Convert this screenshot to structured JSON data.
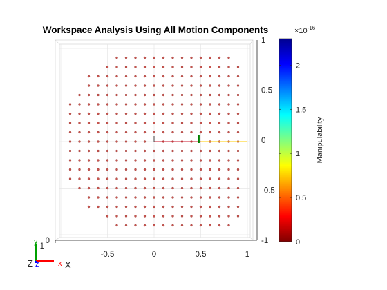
{
  "chart_data": {
    "type": "scatter",
    "title": "Workspace Analysis Using All Motion Components",
    "xlabel": "X",
    "ylabel": "",
    "xlim": [
      -1,
      1
    ],
    "ylim": [
      -1,
      1
    ],
    "xticks": [
      -0.5,
      0,
      0.5,
      1
    ],
    "xtick_labels": [
      "-0.5",
      "0",
      "0.5",
      "1"
    ],
    "yticks": [
      -1,
      -0.5,
      0,
      0.5,
      1
    ],
    "ytick_labels": [
      "-1",
      "-0.5",
      "0",
      "0.5",
      "1"
    ],
    "ztick_labels": [
      "1",
      "0"
    ],
    "grid": true,
    "point_color": "#c8554f",
    "points_description_values": {
      "grid_step": 0.1,
      "rows": [
        {
          "y": 0.9,
          "x": [
            -0.4,
            -0.3,
            -0.2,
            -0.1,
            0.0,
            0.1,
            0.2,
            0.3,
            0.4,
            0.5,
            0.6,
            0.7,
            0.8
          ]
        },
        {
          "y": 0.8,
          "x": [
            -0.5,
            -0.4,
            -0.3,
            -0.2,
            -0.1,
            0.0,
            0.1,
            0.2,
            0.3,
            0.4,
            0.5,
            0.6,
            0.7,
            0.8,
            0.9
          ]
        },
        {
          "y": 0.7,
          "x": [
            -0.7,
            -0.6,
            -0.5,
            -0.4,
            -0.3,
            -0.2,
            -0.1,
            0.0,
            0.1,
            0.2,
            0.3,
            0.4,
            0.5,
            0.6,
            0.7,
            0.8,
            0.9
          ]
        },
        {
          "y": 0.6,
          "x": [
            -0.7,
            -0.6,
            -0.5,
            -0.4,
            -0.3,
            -0.2,
            -0.1,
            0.0,
            0.1,
            0.2,
            0.3,
            0.4,
            0.5,
            0.6,
            0.7,
            0.8,
            0.9
          ]
        },
        {
          "y": 0.5,
          "x": [
            -0.8,
            -0.7,
            -0.6,
            -0.5,
            -0.4,
            -0.3,
            -0.2,
            -0.1,
            0.0,
            0.1,
            0.2,
            0.3,
            0.4,
            0.5,
            0.6,
            0.7,
            0.8,
            0.9
          ]
        },
        {
          "y": 0.4,
          "x": [
            -0.9,
            -0.8,
            -0.7,
            -0.6,
            -0.5,
            -0.4,
            -0.3,
            -0.2,
            -0.1,
            0.0,
            0.1,
            0.2,
            0.3,
            0.4,
            0.5,
            0.6,
            0.7,
            0.8,
            0.9
          ]
        },
        {
          "y": 0.3,
          "x": [
            -0.9,
            -0.8,
            -0.7,
            -0.6,
            -0.5,
            -0.4,
            -0.3,
            -0.2,
            -0.1,
            0.0,
            0.1,
            0.2,
            0.3,
            0.4,
            0.5,
            0.6,
            0.7,
            0.8,
            0.9
          ]
        },
        {
          "y": 0.2,
          "x": [
            -0.9,
            -0.8,
            -0.7,
            -0.6,
            -0.5,
            -0.4,
            -0.3,
            -0.2,
            -0.1,
            0.0,
            0.1,
            0.2,
            0.3,
            0.4,
            0.5,
            0.6,
            0.7,
            0.8,
            0.9
          ]
        },
        {
          "y": 0.1,
          "x": [
            -0.9,
            -0.8,
            -0.7,
            -0.6,
            -0.5,
            -0.4,
            -0.3,
            -0.2,
            -0.1,
            0.0,
            0.1,
            0.2,
            0.3,
            0.4,
            0.5,
            0.6,
            0.7,
            0.8,
            0.9
          ]
        },
        {
          "y": 0.0,
          "x": [
            -0.9,
            -0.8,
            -0.7,
            -0.6,
            -0.5,
            -0.4,
            -0.3,
            -0.2,
            -0.1,
            0.1,
            0.2,
            0.3,
            0.4,
            0.6,
            0.7,
            0.8,
            0.9
          ]
        },
        {
          "y": -0.1,
          "x": [
            -0.9,
            -0.8,
            -0.7,
            -0.6,
            -0.5,
            -0.4,
            -0.3,
            -0.2,
            -0.1,
            0.0,
            0.1,
            0.2,
            0.3,
            0.4,
            0.5,
            0.6,
            0.7,
            0.8,
            0.9
          ]
        },
        {
          "y": -0.2,
          "x": [
            -0.9,
            -0.8,
            -0.7,
            -0.6,
            -0.5,
            -0.4,
            -0.3,
            -0.2,
            -0.1,
            0.0,
            0.1,
            0.2,
            0.3,
            0.4,
            0.5,
            0.6,
            0.7,
            0.8,
            0.9
          ]
        },
        {
          "y": -0.3,
          "x": [
            -0.9,
            -0.8,
            -0.7,
            -0.6,
            -0.5,
            -0.4,
            -0.3,
            -0.2,
            -0.1,
            0.0,
            0.1,
            0.2,
            0.3,
            0.4,
            0.5,
            0.6,
            0.7,
            0.8,
            0.9
          ]
        },
        {
          "y": -0.4,
          "x": [
            -0.9,
            -0.8,
            -0.7,
            -0.6,
            -0.5,
            -0.4,
            -0.3,
            -0.2,
            -0.1,
            0.0,
            0.1,
            0.2,
            0.3,
            0.4,
            0.5,
            0.6,
            0.7,
            0.8,
            0.9
          ]
        },
        {
          "y": -0.5,
          "x": [
            -0.8,
            -0.7,
            -0.6,
            -0.5,
            -0.4,
            -0.3,
            -0.2,
            -0.1,
            0.0,
            0.1,
            0.2,
            0.3,
            0.4,
            0.5,
            0.6,
            0.7,
            0.8,
            0.9
          ]
        },
        {
          "y": -0.6,
          "x": [
            -0.7,
            -0.6,
            -0.5,
            -0.4,
            -0.3,
            -0.2,
            -0.1,
            0.0,
            0.1,
            0.2,
            0.3,
            0.4,
            0.5,
            0.6,
            0.7,
            0.8,
            0.9
          ]
        },
        {
          "y": -0.7,
          "x": [
            -0.7,
            -0.6,
            -0.5,
            -0.4,
            -0.3,
            -0.2,
            -0.1,
            0.0,
            0.1,
            0.2,
            0.3,
            0.4,
            0.5,
            0.6,
            0.7,
            0.8,
            0.9
          ]
        },
        {
          "y": -0.8,
          "x": [
            -0.5,
            -0.4,
            -0.3,
            -0.2,
            -0.1,
            0.0,
            0.1,
            0.2,
            0.3,
            0.4,
            0.5,
            0.6,
            0.7,
            0.8,
            0.9
          ]
        },
        {
          "y": -0.9,
          "x": [
            -0.4,
            -0.3,
            -0.2,
            -0.1,
            0.0,
            0.1,
            0.2,
            0.3,
            0.4,
            0.5,
            0.6,
            0.7,
            0.8
          ]
        }
      ]
    },
    "colorbar": {
      "label": "Manipulability",
      "exponent_text": "×10",
      "exponent_power": "-16",
      "range": [
        0,
        2.3
      ],
      "ticks": [
        0,
        0.5,
        1,
        1.5,
        2
      ],
      "tick_labels": [
        "0",
        "0.5",
        "1",
        "1.5",
        "2"
      ],
      "colormap": "jet-reversed",
      "colormap_stops": [
        "#800000",
        "#ff0000",
        "#ff8000",
        "#ffff00",
        "#80ff80",
        "#00ffff",
        "#0080ff",
        "#0000ff",
        "#00008f"
      ]
    },
    "axes_triad": {
      "labels": [
        "Z",
        "x",
        "X",
        "y",
        "z"
      ],
      "colors": {
        "x": "#ff0000",
        "y": "#00a000",
        "z": "#0000ff"
      }
    },
    "link_line_color_left": "#c8192d",
    "link_line_color_right": "#ffcc00",
    "vertical_marker_color": "#008000"
  }
}
